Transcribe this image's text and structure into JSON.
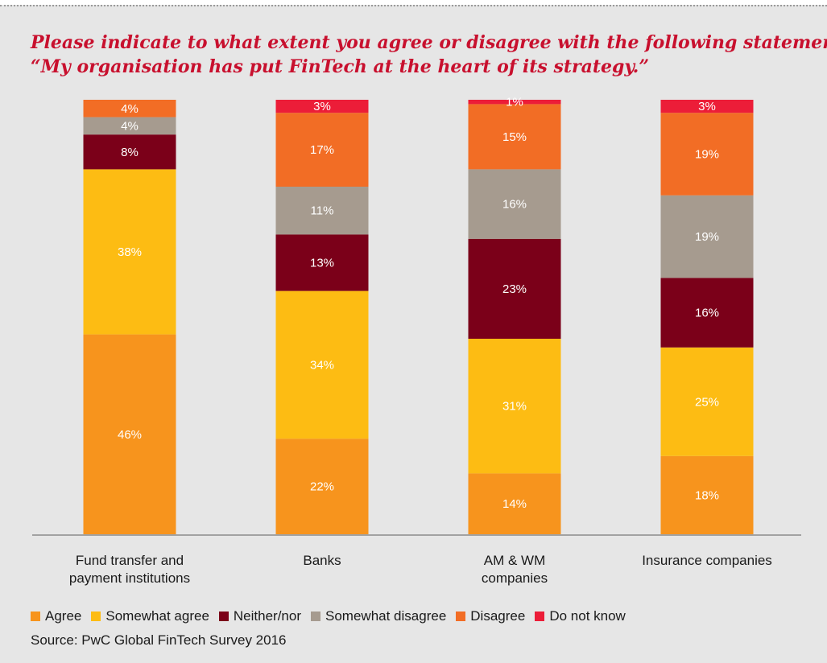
{
  "chart_data": {
    "type": "bar",
    "stacked": true,
    "title_lines": [
      "Please indicate to what extent you agree or disagree with the following statement:",
      "“My organisation has put FinTech at the heart of its strategy.”"
    ],
    "categories": [
      [
        "Fund transfer and",
        "payment institutions"
      ],
      [
        "Banks"
      ],
      [
        "AM & WM",
        "companies"
      ],
      [
        "Insurance companies"
      ]
    ],
    "series": [
      {
        "name": "Agree",
        "color": "#f7941d",
        "label_color": "#ffffff",
        "values": [
          46,
          22,
          14,
          18
        ]
      },
      {
        "name": "Somewhat agree",
        "color": "#fdbc13",
        "label_color": "#ffffff",
        "values": [
          38,
          34,
          31,
          25
        ]
      },
      {
        "name": "Neither/nor",
        "color": "#7b0019",
        "label_color": "#ffffff",
        "values": [
          8,
          13,
          23,
          16
        ]
      },
      {
        "name": "Somewhat disagree",
        "color": "#a69b8f",
        "label_color": "#ffffff",
        "values": [
          4,
          11,
          16,
          19
        ]
      },
      {
        "name": "Disagree",
        "color": "#f26d25",
        "label_color": "#ffffff",
        "values": [
          4,
          17,
          15,
          19
        ]
      },
      {
        "name": "Do not know",
        "color": "#ec1d38",
        "label_color": "#ffffff",
        "values": [
          0,
          3,
          1,
          3
        ]
      }
    ],
    "value_suffix": "%",
    "ylim": [
      0,
      100
    ],
    "grid": false,
    "legend_position": "bottom",
    "source": "Source: PwC Global FinTech Survey 2016"
  }
}
